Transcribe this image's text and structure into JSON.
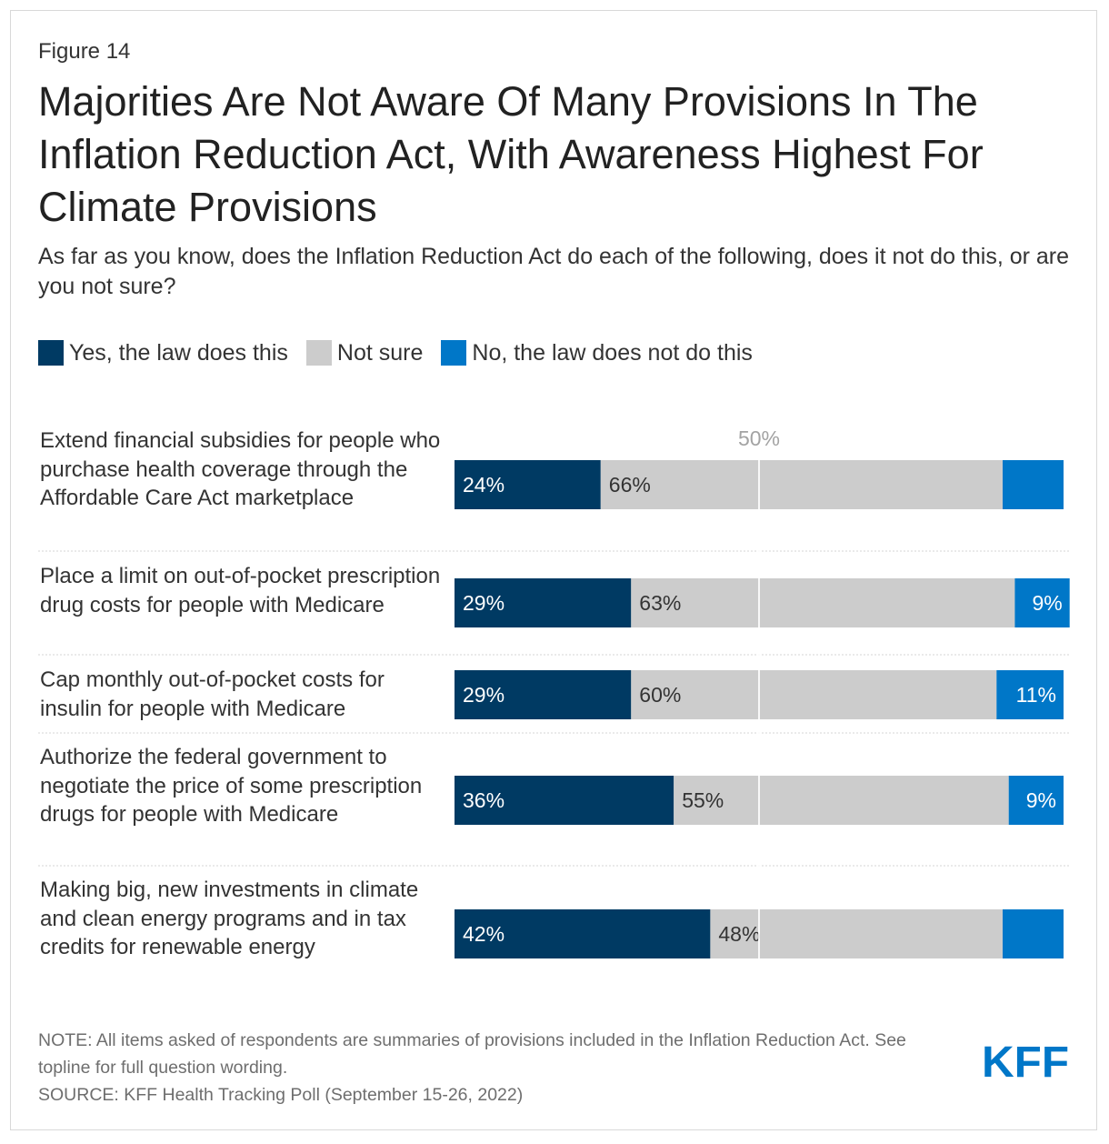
{
  "figure_label": "Figure 14",
  "title": "Majorities Are Not Aware Of Many Provisions In The Inflation Reduction Act, With Awareness Highest For Climate Provisions",
  "subtitle": "As far as you know, does the Inflation Reduction Act do each of the following, does it not do this, or are you not sure?",
  "legend": [
    {
      "label": "Yes, the law does this",
      "color": "#003a63"
    },
    {
      "label": "Not sure",
      "color": "#cccccc"
    },
    {
      "label": "No, the law does not do this",
      "color": "#0077c8"
    }
  ],
  "note": "NOTE: All items asked of respondents are summaries of provisions included in the Inflation Reduction Act. See topline for full question wording.",
  "source": "SOURCE: KFF Health Tracking Poll (September 15-26, 2022)",
  "logo": "KFF",
  "chart_data": {
    "type": "bar",
    "orientation": "horizontal",
    "stacked": true,
    "reference_line": {
      "value": 50,
      "label": "50%"
    },
    "xlim": [
      0,
      100
    ],
    "categories": [
      "Extend financial subsidies for people who purchase health coverage through the Affordable Care Act marketplace",
      "Place a limit on out-of-pocket prescription drug costs for people with Medicare",
      "Cap monthly out-of-pocket costs for insulin for people with Medicare",
      "Authorize the federal government to negotiate the price of some prescription drugs for people with Medicare",
      "Making big, new investments in climate and clean energy programs and in tax credits for renewable energy"
    ],
    "series": [
      {
        "name": "Yes, the law does this",
        "color": "#003a63",
        "values": [
          24,
          29,
          29,
          36,
          42
        ],
        "labels": [
          "24%",
          "29%",
          "29%",
          "36%",
          "42%"
        ]
      },
      {
        "name": "Not sure",
        "color": "#cccccc",
        "values": [
          66,
          63,
          60,
          55,
          48
        ],
        "labels": [
          "66%",
          "63%",
          "60%",
          "55%",
          "48%"
        ]
      },
      {
        "name": "No, the law does not do this",
        "color": "#0077c8",
        "values": [
          10,
          9,
          11,
          9,
          10
        ],
        "labels": [
          "",
          "9%",
          "11%",
          "9%",
          ""
        ]
      }
    ]
  }
}
